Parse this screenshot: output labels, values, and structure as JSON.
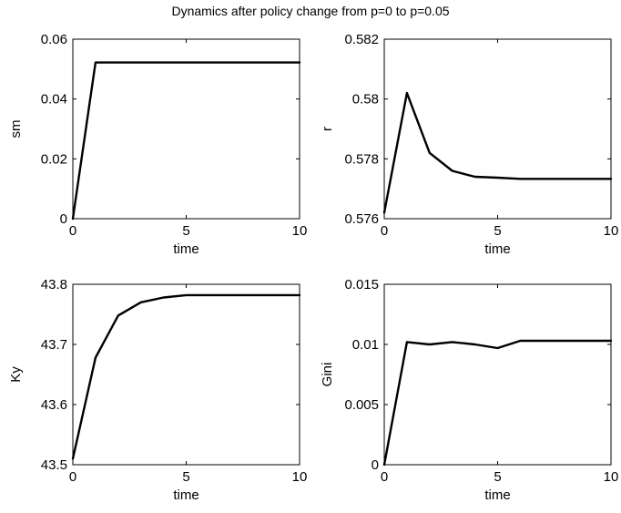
{
  "figure": {
    "title": "Dynamics after policy change from p=0 to p=0.05"
  },
  "chart_data": [
    {
      "type": "line",
      "ylabel": "sm",
      "xlabel": "time",
      "xlim": [
        0,
        10
      ],
      "ylim": [
        0,
        0.06
      ],
      "xticks": [
        0,
        5,
        10
      ],
      "xtick_labels": [
        "0",
        "5",
        "10"
      ],
      "yticks": [
        0,
        0.02,
        0.04,
        0.06
      ],
      "ytick_labels": [
        "0",
        "0.02",
        "0.04",
        "0.06"
      ],
      "grid": false,
      "series": [
        {
          "color": "#000000",
          "x": [
            0,
            1,
            2,
            3,
            4,
            5,
            6,
            7,
            8,
            9,
            10
          ],
          "y": [
            0,
            0.0522,
            0.0522,
            0.0522,
            0.0522,
            0.0522,
            0.0522,
            0.0522,
            0.0522,
            0.0522,
            0.0522
          ]
        }
      ]
    },
    {
      "type": "line",
      "ylabel": "r",
      "xlabel": "time",
      "xlim": [
        0,
        10
      ],
      "ylim": [
        0.576,
        0.582
      ],
      "xticks": [
        0,
        5,
        10
      ],
      "xtick_labels": [
        "0",
        "5",
        "10"
      ],
      "yticks": [
        0.576,
        0.578,
        0.58,
        0.582
      ],
      "ytick_labels": [
        "0.576",
        "0.578",
        "0.58",
        "0.582"
      ],
      "grid": false,
      "series": [
        {
          "color": "#000000",
          "x": [
            0,
            1,
            2,
            3,
            4,
            5,
            6,
            7,
            8,
            9,
            10
          ],
          "y": [
            0.5762,
            0.5802,
            0.5782,
            0.5776,
            0.5774,
            0.57737,
            0.57733,
            0.57733,
            0.57733,
            0.57733,
            0.57733
          ]
        }
      ]
    },
    {
      "type": "line",
      "ylabel": "Ky",
      "xlabel": "time",
      "xlim": [
        0,
        10
      ],
      "ylim": [
        43.5,
        43.8
      ],
      "xticks": [
        0,
        5,
        10
      ],
      "xtick_labels": [
        "0",
        "5",
        "10"
      ],
      "yticks": [
        43.5,
        43.6,
        43.7,
        43.8
      ],
      "ytick_labels": [
        "43.5",
        "43.6",
        "43.7",
        "43.8"
      ],
      "grid": false,
      "series": [
        {
          "color": "#000000",
          "x": [
            0,
            1,
            2,
            3,
            4,
            5,
            6,
            7,
            8,
            9,
            10
          ],
          "y": [
            43.51,
            43.678,
            43.748,
            43.77,
            43.778,
            43.782,
            43.782,
            43.782,
            43.782,
            43.782,
            43.782
          ]
        }
      ]
    },
    {
      "type": "line",
      "ylabel": "Gini",
      "xlabel": "time",
      "xlim": [
        0,
        10
      ],
      "ylim": [
        0,
        0.015
      ],
      "xticks": [
        0,
        5,
        10
      ],
      "xtick_labels": [
        "0",
        "5",
        "10"
      ],
      "yticks": [
        0,
        0.005,
        0.01,
        0.015
      ],
      "ytick_labels": [
        "0",
        "0.005",
        "0.01",
        "0.015"
      ],
      "grid": false,
      "series": [
        {
          "color": "#000000",
          "x": [
            0,
            1,
            2,
            3,
            4,
            5,
            6,
            7,
            8,
            9,
            10
          ],
          "y": [
            0,
            0.0102,
            0.01,
            0.0102,
            0.01,
            0.0097,
            0.0103,
            0.0103,
            0.0103,
            0.0103,
            0.0103
          ]
        }
      ]
    }
  ]
}
